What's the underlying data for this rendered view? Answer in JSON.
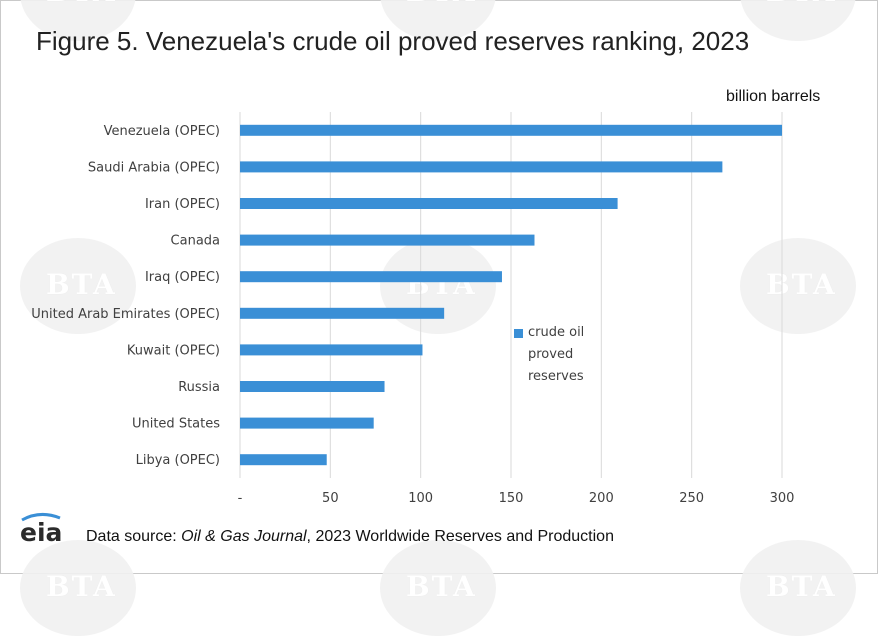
{
  "figure": {
    "title": "Figure 5. Venezuela's crude oil proved reserves ranking, 2023",
    "unit_label": "billion barrels",
    "source": {
      "prefix": "Data source: ",
      "journal": "Oil & Gas Journal",
      "suffix": ", 2023 Worldwide Reserves and Production"
    },
    "logo_text": "eia",
    "watermark_text": "BTA",
    "colors": {
      "bar": "#3a8fd6",
      "grid": "#d9d9d9",
      "text": "#404040"
    }
  },
  "chart_data": {
    "type": "bar",
    "orientation": "horizontal",
    "categories": [
      "Venezuela (OPEC)",
      "Saudi Arabia (OPEC)",
      "Iran (OPEC)",
      "Canada",
      "Iraq (OPEC)",
      "United Arab Emirates (OPEC)",
      "Kuwait (OPEC)",
      "Russia",
      "United States",
      "Libya (OPEC)"
    ],
    "series": [
      {
        "name": "crude oil proved reserves",
        "values": [
          303,
          267,
          209,
          163,
          145,
          113,
          101,
          80,
          74,
          48
        ]
      }
    ],
    "xticks": [
      "-",
      "50",
      "100",
      "150",
      "200",
      "250",
      "300"
    ],
    "xlim": [
      0,
      300
    ],
    "grid": true,
    "legend_position": "right",
    "xlabel": "",
    "ylabel": ""
  }
}
